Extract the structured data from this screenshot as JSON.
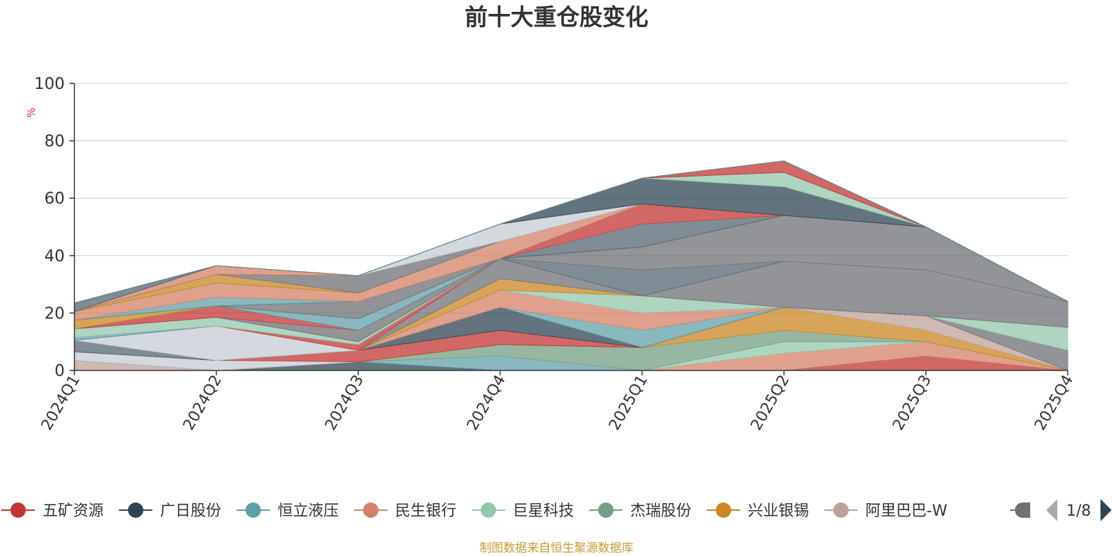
{
  "chart_data": {
    "type": "area",
    "title": "前十大重仓股变化",
    "ylabel": "%",
    "ylim": [
      0,
      100
    ],
    "yticks": [
      0,
      20,
      40,
      60,
      80,
      100
    ],
    "grid": true,
    "legend_position": "bottom",
    "categories": [
      "2024Q1",
      "2024Q2",
      "2024Q3",
      "2024Q4",
      "2025Q1",
      "2025Q2",
      "2025Q3",
      "2025Q4"
    ],
    "series": [
      {
        "name": "五矿资源",
        "color": "#c23531",
        "values": [
          0,
          0,
          0,
          0,
          0,
          0,
          5,
          0
        ]
      },
      {
        "name": "广日股份",
        "color": "#2f4554",
        "values": [
          0,
          0,
          3,
          0,
          0,
          0,
          0,
          0
        ]
      },
      {
        "name": "恒立液压",
        "color": "#61a0a8",
        "values": [
          0,
          0,
          0,
          5,
          0,
          0,
          0,
          0
        ]
      },
      {
        "name": "民生银行",
        "color": "#d48265",
        "values": [
          0,
          0,
          0,
          0,
          0,
          6,
          5,
          0
        ]
      },
      {
        "name": "巨星科技",
        "color": "#91c7ae",
        "values": [
          0,
          0,
          0,
          0,
          0,
          4,
          0,
          0
        ]
      },
      {
        "name": "杰瑞股份",
        "color": "#749f83",
        "values": [
          0,
          0,
          0,
          4,
          8,
          4,
          0,
          0
        ]
      },
      {
        "name": "兴业银锡",
        "color": "#ca8622",
        "values": [
          0,
          0,
          0,
          0,
          0,
          8,
          4,
          0
        ]
      },
      {
        "name": "阿里巴巴-W",
        "color": "#bda29a",
        "values": [
          3.5,
          0,
          0,
          0,
          0,
          0,
          5,
          0
        ]
      },
      {
        "name": "",
        "color": "#6e7074",
        "values": [
          0,
          0,
          0,
          0,
          0,
          0,
          0,
          7
        ]
      },
      {
        "name": "",
        "color": "#546570",
        "values": [
          0,
          0,
          0,
          0,
          0,
          0,
          0,
          0
        ]
      },
      {
        "name": "",
        "color": "#c4ccd3",
        "values": [
          3,
          3.5,
          0,
          0,
          0,
          0,
          0,
          0
        ]
      },
      {
        "name": "",
        "color": "#c23531",
        "values": [
          0,
          0,
          4,
          5,
          0,
          0,
          0,
          0
        ]
      },
      {
        "name": "",
        "color": "#2f4554",
        "values": [
          0,
          0,
          0,
          8,
          0,
          0,
          0,
          0
        ]
      },
      {
        "name": "",
        "color": "#61a0a8",
        "values": [
          0,
          0,
          0,
          0,
          6,
          0,
          0,
          0
        ]
      },
      {
        "name": "",
        "color": "#d48265",
        "values": [
          0,
          0,
          0,
          6,
          6,
          0,
          0,
          0
        ]
      },
      {
        "name": "",
        "color": "#91c7ae",
        "values": [
          0,
          0,
          0,
          0,
          6,
          0,
          0,
          8
        ]
      },
      {
        "name": "",
        "color": "#749f83",
        "values": [
          0,
          0,
          0,
          0,
          0,
          0,
          0,
          0
        ]
      },
      {
        "name": "",
        "color": "#ca8622",
        "values": [
          0,
          0,
          0,
          4,
          0,
          0,
          0,
          0
        ]
      },
      {
        "name": "",
        "color": "#bda29a",
        "values": [
          0,
          0,
          0,
          0,
          0,
          0,
          0,
          0
        ]
      },
      {
        "name": "",
        "color": "#6e7074",
        "values": [
          0,
          0,
          0,
          7,
          0,
          16,
          16,
          9
        ]
      },
      {
        "name": "",
        "color": "#546570",
        "values": [
          4,
          0,
          0,
          0,
          9,
          0,
          0,
          0
        ]
      },
      {
        "name": "",
        "color": "#c4ccd3",
        "values": [
          0,
          12,
          0,
          0,
          0,
          0,
          0,
          0
        ]
      },
      {
        "name": "",
        "color": "#c23531",
        "values": [
          0,
          0,
          2,
          0,
          0,
          0,
          0,
          0
        ]
      },
      {
        "name": "",
        "color": "#2f4554",
        "values": [
          0,
          0,
          0,
          0,
          0,
          0,
          0,
          0
        ]
      },
      {
        "name": "",
        "color": "#61a0a8",
        "values": [
          1,
          0,
          0,
          0,
          0,
          0,
          0,
          0
        ]
      },
      {
        "name": "",
        "color": "#d48265",
        "values": [
          0,
          0,
          0,
          0,
          0,
          0,
          0,
          0
        ]
      },
      {
        "name": "",
        "color": "#91c7ae",
        "values": [
          3,
          3,
          1,
          0,
          0,
          0,
          0,
          0
        ]
      },
      {
        "name": "",
        "color": "#749f83",
        "values": [
          0,
          0,
          0,
          0,
          0,
          0,
          0,
          0
        ]
      },
      {
        "name": "",
        "color": "#ca8622",
        "values": [
          0,
          0,
          0,
          0,
          0,
          0,
          0,
          0
        ]
      },
      {
        "name": "",
        "color": "#bda29a",
        "values": [
          0,
          0,
          0,
          0,
          0,
          0,
          0,
          0
        ]
      },
      {
        "name": "",
        "color": "#6e7074",
        "values": [
          0,
          0,
          4,
          0,
          8,
          16,
          15,
          0
        ]
      },
      {
        "name": "",
        "color": "#546570",
        "values": [
          0,
          0,
          0,
          0,
          0,
          0,
          0,
          0
        ]
      },
      {
        "name": "",
        "color": "#c4ccd3",
        "values": [
          0,
          0,
          0,
          0,
          0,
          0,
          0,
          0
        ]
      },
      {
        "name": "",
        "color": "#c23531",
        "values": [
          0,
          4,
          0,
          0,
          0,
          0,
          0,
          0
        ]
      },
      {
        "name": "",
        "color": "#2f4554",
        "values": [
          0,
          0,
          0,
          0,
          0,
          0,
          0,
          0
        ]
      },
      {
        "name": "",
        "color": "#61a0a8",
        "values": [
          0,
          0,
          4,
          0,
          0,
          0,
          0,
          0
        ]
      },
      {
        "name": "",
        "color": "#d48265",
        "values": [
          0,
          0,
          0,
          0,
          0,
          0,
          0,
          0
        ]
      },
      {
        "name": "",
        "color": "#91c7ae",
        "values": [
          0,
          0,
          0,
          0,
          0,
          0,
          0,
          0
        ]
      },
      {
        "name": "",
        "color": "#749f83",
        "values": [
          0,
          0,
          0,
          0,
          0,
          0,
          0,
          0
        ]
      },
      {
        "name": "",
        "color": "#ca8622",
        "values": [
          3,
          0,
          0,
          0,
          0,
          0,
          0,
          0
        ]
      },
      {
        "name": "",
        "color": "#bda29a",
        "values": [
          0,
          0,
          0,
          0,
          0,
          0,
          0,
          0
        ]
      },
      {
        "name": "",
        "color": "#6e7074",
        "values": [
          0,
          0,
          6,
          0,
          0,
          0,
          0,
          0
        ]
      },
      {
        "name": "",
        "color": "#546570",
        "values": [
          0,
          0,
          0,
          0,
          8,
          0,
          0,
          0
        ]
      },
      {
        "name": "",
        "color": "#c4ccd3",
        "values": [
          0,
          0,
          0,
          0,
          0,
          0,
          0,
          0
        ]
      },
      {
        "name": "",
        "color": "#c23531",
        "values": [
          0,
          0,
          0,
          0,
          7,
          0,
          0,
          0
        ]
      },
      {
        "name": "",
        "color": "#2f4554",
        "values": [
          0,
          0,
          0,
          0,
          0,
          0,
          0,
          0
        ]
      },
      {
        "name": "",
        "color": "#61a0a8",
        "values": [
          0,
          3,
          0,
          0,
          0,
          0,
          0,
          0
        ]
      },
      {
        "name": "",
        "color": "#d48265",
        "values": [
          3,
          5,
          3,
          6,
          0,
          0,
          0,
          0
        ]
      },
      {
        "name": "",
        "color": "#91c7ae",
        "values": [
          0,
          0,
          0,
          0,
          0,
          0,
          0,
          0
        ]
      },
      {
        "name": "",
        "color": "#749f83",
        "values": [
          0,
          0,
          0,
          0,
          0,
          0,
          0,
          0
        ]
      },
      {
        "name": "",
        "color": "#ca8622",
        "values": [
          0,
          3,
          0,
          0,
          0,
          0,
          0,
          0
        ]
      },
      {
        "name": "",
        "color": "#bda29a",
        "values": [
          0,
          0,
          0,
          0,
          0,
          0,
          0,
          0
        ]
      },
      {
        "name": "",
        "color": "#6e7074",
        "values": [
          0,
          0,
          6,
          0,
          0,
          0,
          0,
          0
        ]
      },
      {
        "name": "",
        "color": "#546570",
        "values": [
          0,
          0,
          0,
          0,
          0,
          0,
          0,
          0
        ]
      },
      {
        "name": "",
        "color": "#c4ccd3",
        "values": [
          0,
          0,
          0,
          6,
          0,
          0,
          0,
          0
        ]
      },
      {
        "name": "",
        "color": "#c23531",
        "values": [
          0,
          0,
          0,
          0,
          0,
          0,
          0,
          0
        ]
      },
      {
        "name": "",
        "color": "#2f4554",
        "values": [
          0,
          0,
          0,
          0,
          9,
          10,
          0,
          0
        ]
      },
      {
        "name": "",
        "color": "#61a0a8",
        "values": [
          0,
          0,
          0,
          0,
          0,
          0,
          0,
          0
        ]
      },
      {
        "name": "",
        "color": "#d48265",
        "values": [
          0,
          3,
          0,
          0,
          0,
          0,
          0,
          0
        ]
      },
      {
        "name": "",
        "color": "#91c7ae",
        "values": [
          0,
          0,
          0,
          0,
          0,
          5,
          0,
          0
        ]
      },
      {
        "name": "",
        "color": "#749f83",
        "values": [
          0,
          0,
          0,
          0,
          0,
          0,
          0,
          0
        ]
      },
      {
        "name": "",
        "color": "#ca8622",
        "values": [
          0,
          0,
          0,
          0,
          0,
          0,
          0,
          0
        ]
      },
      {
        "name": "",
        "color": "#bda29a",
        "values": [
          0,
          0,
          0,
          0,
          0,
          0,
          0,
          0
        ]
      },
      {
        "name": "",
        "color": "#6e7074",
        "values": [
          0,
          0,
          0,
          0,
          0,
          0,
          0,
          0
        ]
      },
      {
        "name": "",
        "color": "#546570",
        "values": [
          3,
          0,
          0,
          0,
          0,
          0,
          0,
          0
        ]
      },
      {
        "name": "",
        "color": "#c4ccd3",
        "values": [
          0,
          0,
          0,
          0,
          0,
          0,
          0,
          0
        ]
      },
      {
        "name": "",
        "color": "#c23531",
        "values": [
          0,
          0,
          0,
          0,
          0,
          4,
          0,
          0
        ]
      },
      {
        "name": "",
        "color": "#2f4554",
        "values": [
          0,
          0,
          0,
          0,
          0,
          0,
          0,
          0
        ]
      },
      {
        "name": "",
        "color": "#61a0a8",
        "values": [
          0,
          0,
          0,
          0,
          0,
          0,
          0,
          0
        ]
      },
      {
        "name": "",
        "color": "#d48265",
        "values": [
          0,
          0,
          0,
          0,
          0,
          0,
          0,
          0
        ]
      },
      {
        "name": "",
        "color": "#91c7ae",
        "values": [
          0,
          0,
          0,
          0,
          0,
          0,
          0,
          0
        ]
      },
      {
        "name": "",
        "color": "#749f83",
        "values": [
          0,
          0,
          0,
          0,
          0,
          0,
          0,
          0
        ]
      },
      {
        "name": "",
        "color": "#ca8622",
        "values": [
          0,
          0,
          0,
          0,
          0,
          0,
          0,
          0
        ]
      },
      {
        "name": "",
        "color": "#bda29a",
        "values": [
          0,
          0,
          0,
          0,
          0,
          0,
          0,
          0
        ]
      },
      {
        "name": "",
        "color": "#6e7074",
        "values": [
          0,
          0,
          0,
          0,
          0,
          0,
          0,
          0
        ]
      },
      {
        "name": "",
        "color": "#546570",
        "values": [
          0,
          0,
          0,
          0,
          0,
          0,
          0,
          0
        ]
      },
      {
        "name": "",
        "color": "#c4ccd3",
        "values": [
          0,
          0,
          0,
          0,
          0,
          0,
          0,
          0
        ]
      },
      {
        "name": "",
        "color": "#c23531",
        "values": [
          0,
          0,
          0,
          0,
          0,
          0,
          0,
          0
        ]
      },
      {
        "name": "",
        "color": "#2f4554",
        "values": [
          0,
          0,
          0,
          0,
          0,
          0,
          0,
          0
        ]
      },
      {
        "name": "",
        "color": "#61a0a8",
        "values": [
          0,
          0,
          0,
          0,
          0,
          0,
          0,
          0
        ]
      }
    ]
  },
  "legend": {
    "page_indicator": "1/8",
    "items": [
      {
        "name": "五矿资源",
        "color": "#c23531"
      },
      {
        "name": "广日股份",
        "color": "#2f4554"
      },
      {
        "name": "恒立液压",
        "color": "#61a0a8"
      },
      {
        "name": "民生银行",
        "color": "#d48265"
      },
      {
        "name": "巨星科技",
        "color": "#91c7ae"
      },
      {
        "name": "杰瑞股份",
        "color": "#749f83"
      },
      {
        "name": "兴业银锡",
        "color": "#ca8622"
      },
      {
        "name": "阿里巴巴-W",
        "color": "#bda29a"
      }
    ]
  },
  "footer": "制图数据来自恒生聚源数据库"
}
